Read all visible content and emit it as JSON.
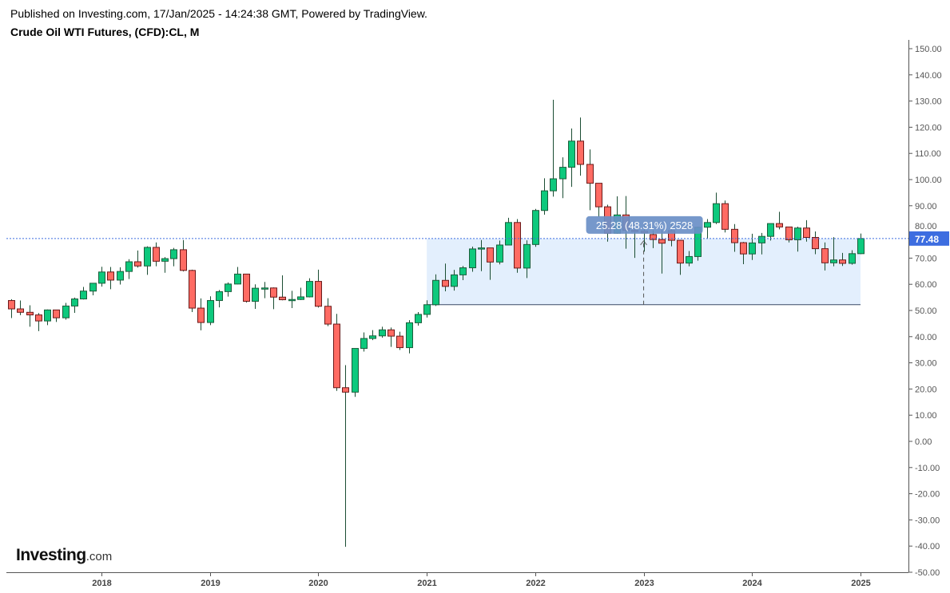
{
  "header": {
    "published": "Published on Investing.com, 17/Jan/2025 - 14:24:38 GMT, Powered by TradingView.",
    "title": "Crude Oil WTI Futures, (CFD):CL, M"
  },
  "logo": {
    "name": "Investing",
    "suffix": ".com"
  },
  "colors": {
    "up": "#0dc97d",
    "up_border": "#1b5e3b",
    "down": "#ff6b63",
    "down_border": "#6b1a1a",
    "wick": "#1b4d33",
    "price_line": "#3d6de0",
    "measure_fill": "#e3effd",
    "measure_label": "#6a8fc7"
  },
  "chart_data": {
    "type": "candlestick",
    "title": "Crude Oil WTI Futures, (CFD):CL, M",
    "interval": "1M",
    "start": "2017-03",
    "ylim": [
      -50,
      150
    ],
    "y_ticks": [
      "150.00",
      "140.00",
      "130.00",
      "120.00",
      "110.00",
      "100.00",
      "90.00",
      "80.00",
      "70.00",
      "60.00",
      "50.00",
      "40.00",
      "30.00",
      "20.00",
      "10.00",
      "0.00",
      "-10.00",
      "-20.00",
      "-30.00",
      "-40.00",
      "-50.00"
    ],
    "x_ticks": [
      {
        "label": "2018",
        "index": 10
      },
      {
        "label": "2019",
        "index": 22
      },
      {
        "label": "2020",
        "index": 34
      },
      {
        "label": "2021",
        "index": 46
      },
      {
        "label": "2022",
        "index": 58
      },
      {
        "label": "2023",
        "index": 70
      },
      {
        "label": "2024",
        "index": 82
      },
      {
        "label": "2025",
        "index": 94
      }
    ],
    "last_price": 77.48,
    "last_price_label": "77.48",
    "measure": {
      "from_index": 46,
      "to_index": 94,
      "from_price": 52.2,
      "to_price": 77.48,
      "label": "25.28 (48.31%) 2528"
    },
    "ohlc": [
      [
        53.8,
        54.3,
        47.1,
        50.6
      ],
      [
        50.6,
        53.8,
        48.2,
        49.3
      ],
      [
        49.3,
        52.0,
        43.8,
        48.3
      ],
      [
        48.3,
        49.0,
        42.1,
        46.0
      ],
      [
        46.0,
        50.4,
        44.4,
        50.2
      ],
      [
        50.2,
        50.2,
        45.6,
        47.2
      ],
      [
        47.2,
        52.9,
        46.5,
        51.7
      ],
      [
        51.7,
        54.9,
        49.1,
        54.4
      ],
      [
        54.4,
        59.0,
        54.2,
        57.4
      ],
      [
        57.4,
        60.5,
        55.8,
        60.4
      ],
      [
        60.4,
        66.7,
        59.1,
        64.7
      ],
      [
        64.7,
        66.6,
        58.1,
        61.6
      ],
      [
        61.6,
        66.5,
        59.9,
        64.9
      ],
      [
        64.9,
        69.6,
        62.0,
        68.6
      ],
      [
        68.6,
        72.9,
        66.4,
        67.0
      ],
      [
        67.0,
        74.5,
        63.6,
        74.1
      ],
      [
        74.1,
        76.0,
        66.9,
        68.8
      ],
      [
        68.8,
        70.4,
        64.4,
        69.8
      ],
      [
        69.8,
        73.9,
        66.9,
        73.2
      ],
      [
        73.2,
        76.9,
        64.9,
        65.3
      ],
      [
        65.3,
        65.6,
        49.4,
        50.9
      ],
      [
        50.9,
        54.6,
        42.4,
        45.4
      ],
      [
        45.4,
        55.4,
        44.4,
        53.8
      ],
      [
        53.8,
        57.8,
        51.2,
        57.2
      ],
      [
        57.2,
        60.7,
        55.3,
        60.1
      ],
      [
        60.1,
        66.6,
        60.0,
        63.9
      ],
      [
        63.9,
        63.9,
        53.0,
        53.5
      ],
      [
        53.5,
        60.0,
        50.6,
        58.5
      ],
      [
        58.5,
        60.9,
        54.7,
        58.6
      ],
      [
        58.6,
        58.8,
        50.5,
        55.1
      ],
      [
        55.1,
        63.4,
        53.9,
        54.1
      ],
      [
        54.1,
        57.5,
        50.9,
        54.2
      ],
      [
        54.2,
        58.7,
        54.0,
        55.2
      ],
      [
        55.2,
        62.3,
        55.0,
        61.1
      ],
      [
        61.1,
        65.6,
        51.1,
        51.6
      ],
      [
        51.6,
        54.7,
        44.0,
        44.8
      ],
      [
        44.8,
        48.7,
        19.3,
        20.5
      ],
      [
        20.5,
        29.1,
        -40.3,
        18.8
      ],
      [
        18.8,
        35.4,
        17.0,
        35.5
      ],
      [
        35.5,
        41.6,
        34.3,
        39.3
      ],
      [
        39.3,
        42.5,
        38.7,
        40.3
      ],
      [
        40.3,
        43.8,
        39.6,
        42.6
      ],
      [
        42.6,
        43.5,
        36.1,
        40.2
      ],
      [
        40.2,
        41.9,
        34.9,
        35.8
      ],
      [
        35.8,
        46.3,
        33.6,
        45.3
      ],
      [
        45.3,
        49.4,
        44.2,
        48.5
      ],
      [
        48.5,
        53.9,
        47.3,
        52.2
      ],
      [
        52.2,
        63.8,
        51.7,
        61.5
      ],
      [
        61.5,
        67.9,
        57.3,
        59.2
      ],
      [
        59.2,
        65.5,
        57.6,
        63.6
      ],
      [
        63.6,
        67.0,
        61.6,
        66.3
      ],
      [
        66.3,
        74.4,
        64.8,
        73.5
      ],
      [
        73.5,
        76.9,
        65.0,
        73.9
      ],
      [
        73.9,
        73.9,
        61.7,
        68.5
      ],
      [
        68.5,
        76.7,
        67.6,
        75.0
      ],
      [
        75.0,
        85.4,
        74.9,
        83.6
      ],
      [
        83.6,
        84.9,
        64.4,
        66.2
      ],
      [
        66.2,
        76.8,
        62.4,
        75.2
      ],
      [
        75.2,
        88.8,
        74.3,
        88.2
      ],
      [
        88.2,
        100.5,
        86.6,
        95.7
      ],
      [
        95.7,
        130.5,
        93.5,
        100.3
      ],
      [
        100.3,
        108.5,
        92.9,
        104.7
      ],
      [
        104.7,
        119.5,
        97.2,
        114.7
      ],
      [
        114.7,
        123.7,
        101.5,
        105.8
      ],
      [
        105.8,
        111.5,
        88.3,
        98.6
      ],
      [
        98.6,
        97.7,
        85.7,
        89.6
      ],
      [
        89.6,
        90.4,
        76.3,
        79.5
      ],
      [
        79.5,
        93.6,
        79.3,
        86.5
      ],
      [
        86.5,
        93.7,
        73.6,
        80.6
      ],
      [
        80.6,
        83.3,
        70.1,
        80.3
      ],
      [
        80.3,
        82.7,
        72.5,
        79.6
      ],
      [
        79.0,
        80.6,
        73.8,
        77.1
      ],
      [
        77.1,
        81.0,
        64.1,
        75.7
      ],
      [
        80.5,
        83.5,
        74.5,
        76.8
      ],
      [
        76.8,
        77.0,
        63.6,
        68.1
      ],
      [
        68.1,
        72.7,
        66.9,
        70.6
      ],
      [
        70.6,
        82.0,
        69.0,
        81.8
      ],
      [
        81.8,
        84.9,
        77.6,
        83.6
      ],
      [
        83.6,
        95.0,
        83.0,
        90.8
      ],
      [
        90.8,
        92.0,
        79.8,
        81.0
      ],
      [
        81.0,
        83.0,
        72.4,
        75.9
      ],
      [
        75.9,
        76.2,
        67.7,
        71.6
      ],
      [
        71.6,
        79.3,
        69.3,
        75.8
      ],
      [
        75.8,
        79.6,
        71.4,
        78.3
      ],
      [
        78.3,
        83.1,
        76.7,
        83.2
      ],
      [
        83.2,
        87.7,
        81.0,
        81.9
      ],
      [
        81.9,
        81.9,
        76.0,
        77.0
      ],
      [
        77.0,
        82.0,
        72.5,
        81.5
      ],
      [
        81.5,
        84.5,
        76.3,
        77.9
      ],
      [
        77.9,
        80.2,
        71.5,
        73.6
      ],
      [
        73.6,
        76.0,
        65.3,
        68.2
      ],
      [
        68.2,
        78.0,
        66.9,
        69.3
      ],
      [
        69.3,
        72.0,
        67.0,
        68.0
      ],
      [
        68.0,
        73.0,
        67.5,
        71.7
      ],
      [
        71.7,
        79.4,
        71.5,
        77.48
      ]
    ]
  }
}
